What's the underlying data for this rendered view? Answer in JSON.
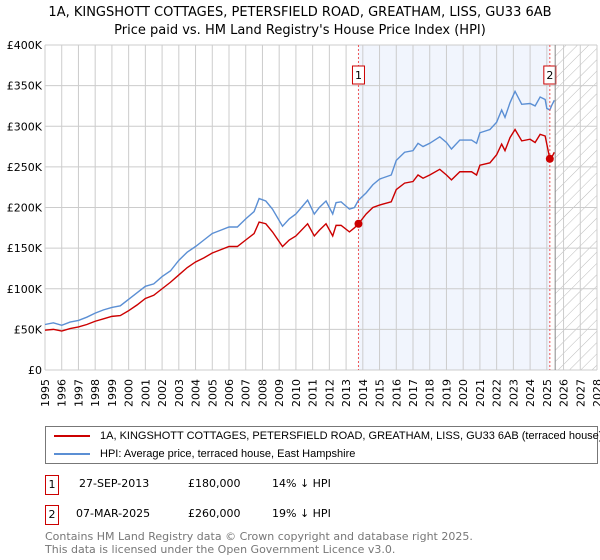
{
  "chart_data": {
    "type": "line",
    "title": "1A, KINGSHOTT COTTAGES, PETERSFIELD ROAD, GREATHAM, LISS, GU33 6AB",
    "subtitle": "Price paid vs. HM Land Registry's House Price Index (HPI)",
    "xlim": [
      1995,
      2028
    ],
    "ylim": [
      0,
      400000
    ],
    "x_ticks": [
      "1995",
      "1996",
      "1997",
      "1998",
      "1999",
      "2000",
      "2001",
      "2002",
      "2003",
      "2004",
      "2005",
      "2006",
      "2007",
      "2008",
      "2009",
      "2010",
      "2011",
      "2012",
      "2013",
      "2014",
      "2015",
      "2016",
      "2017",
      "2018",
      "2019",
      "2020",
      "2021",
      "2022",
      "2023",
      "2024",
      "2025",
      "2026",
      "2027",
      "2028"
    ],
    "y_ticks": [
      {
        "v": 0,
        "label": "£0"
      },
      {
        "v": 50000,
        "label": "£50K"
      },
      {
        "v": 100000,
        "label": "£100K"
      },
      {
        "v": 150000,
        "label": "£150K"
      },
      {
        "v": 200000,
        "label": "£200K"
      },
      {
        "v": 250000,
        "label": "£250K"
      },
      {
        "v": 300000,
        "label": "£300K"
      },
      {
        "v": 350000,
        "label": "£350K"
      },
      {
        "v": 400000,
        "label": "£400K"
      }
    ],
    "grid": true,
    "series": [
      {
        "name": "1A, KINGSHOTT COTTAGES, PETERSFIELD ROAD, GREATHAM, LISS, GU33 6AB (terraced house)",
        "color": "#cc0000",
        "x": [
          1995,
          1995.5,
          1996,
          1996.5,
          1997,
          1997.5,
          1998,
          1998.5,
          1999,
          1999.5,
          2000,
          2000.5,
          2001,
          2001.5,
          2002,
          2002.5,
          2003,
          2003.5,
          2004,
          2004.5,
          2005,
          2005.5,
          2006,
          2006.5,
          2007,
          2007.5,
          2007.8,
          2008.2,
          2008.6,
          2009.2,
          2009.6,
          2010,
          2010.7,
          2011.1,
          2011.4,
          2011.8,
          2012.2,
          2012.4,
          2012.7,
          2013.2,
          2013.5,
          2013.74,
          2014.2,
          2014.6,
          2015,
          2015.7,
          2016,
          2016.5,
          2017,
          2017.3,
          2017.6,
          2018,
          2018.6,
          2019,
          2019.3,
          2019.8,
          2020.5,
          2020.8,
          2021,
          2021.6,
          2022,
          2022.3,
          2022.5,
          2022.8,
          2023.1,
          2023.5,
          2024,
          2024.3,
          2024.6,
          2024.9,
          2025.0,
          2025.18,
          2025.3,
          2025.45
        ],
        "y": [
          49000,
          50000,
          48000,
          51000,
          53000,
          56000,
          60000,
          63000,
          66000,
          67000,
          73000,
          80000,
          88000,
          92000,
          100000,
          108000,
          117000,
          126000,
          133000,
          138000,
          144000,
          148000,
          152000,
          152000,
          160000,
          168000,
          182000,
          180000,
          170000,
          152000,
          160000,
          165000,
          180000,
          165000,
          172000,
          180000,
          165000,
          178000,
          178000,
          170000,
          175000,
          180000,
          192000,
          200000,
          203000,
          207000,
          222000,
          230000,
          232000,
          240000,
          236000,
          240000,
          247000,
          240000,
          234000,
          244000,
          244000,
          240000,
          252000,
          255000,
          265000,
          278000,
          270000,
          286000,
          296000,
          282000,
          284000,
          280000,
          290000,
          288000,
          278000,
          260000,
          262000,
          268000
        ]
      },
      {
        "name": "HPI: Average price, terraced house, East Hampshire",
        "color": "#5b8fd4",
        "x": [
          1995,
          1995.5,
          1996,
          1996.5,
          1997,
          1997.5,
          1998,
          1998.5,
          1999,
          1999.5,
          2000,
          2000.5,
          2001,
          2001.5,
          2002,
          2002.5,
          2003,
          2003.5,
          2004,
          2004.5,
          2005,
          2005.5,
          2006,
          2006.5,
          2007,
          2007.5,
          2007.8,
          2008.2,
          2008.6,
          2009.2,
          2009.6,
          2010,
          2010.7,
          2011.1,
          2011.4,
          2011.8,
          2012.2,
          2012.4,
          2012.7,
          2013.2,
          2013.5,
          2013.74,
          2014.2,
          2014.6,
          2015,
          2015.7,
          2016,
          2016.5,
          2017,
          2017.3,
          2017.6,
          2018,
          2018.6,
          2019,
          2019.3,
          2019.8,
          2020.5,
          2020.8,
          2021,
          2021.6,
          2022,
          2022.3,
          2022.5,
          2022.8,
          2023.1,
          2023.5,
          2024,
          2024.3,
          2024.6,
          2024.9,
          2025.0,
          2025.18,
          2025.3,
          2025.45
        ],
        "y": [
          56000,
          58000,
          55000,
          59000,
          61000,
          65000,
          70000,
          74000,
          77000,
          79000,
          87000,
          95000,
          103000,
          106000,
          115000,
          122000,
          135000,
          145000,
          152000,
          160000,
          168000,
          172000,
          176000,
          176000,
          186000,
          195000,
          211000,
          208000,
          198000,
          177000,
          186000,
          192000,
          209000,
          192000,
          200000,
          208000,
          192000,
          206000,
          207000,
          198000,
          200000,
          209000,
          218000,
          228000,
          235000,
          240000,
          258000,
          268000,
          270000,
          279000,
          275000,
          279000,
          287000,
          280000,
          272000,
          283000,
          283000,
          279000,
          292000,
          296000,
          305000,
          320000,
          311000,
          329000,
          343000,
          327000,
          328000,
          325000,
          336000,
          333000,
          322000,
          320000,
          326000,
          332000
        ]
      }
    ],
    "annotations": [
      {
        "label": "1",
        "x": 2013.74,
        "y": 180000
      },
      {
        "label": "2",
        "x": 2025.18,
        "y": 260000
      }
    ],
    "shaded_region": [
      2013.74,
      2025.18
    ],
    "hatched_region": [
      2025.5,
      2028
    ]
  },
  "legend": {
    "items": [
      {
        "label": "1A, KINGSHOTT COTTAGES, PETERSFIELD ROAD, GREATHAM, LISS, GU33 6AB (terraced house)",
        "color": "#cc0000"
      },
      {
        "label": "HPI: Average price, terraced house, East Hampshire",
        "color": "#5b8fd4"
      }
    ]
  },
  "transactions": [
    {
      "num": "1",
      "date": "27-SEP-2013",
      "price": "£180,000",
      "hpi": "14% ↓ HPI"
    },
    {
      "num": "2",
      "date": "07-MAR-2025",
      "price": "£260,000",
      "hpi": "19% ↓ HPI"
    }
  ],
  "footer": {
    "line1": "Contains HM Land Registry data © Crown copyright and database right 2025.",
    "line2": "This data is licensed under the Open Government Licence v3.0."
  }
}
